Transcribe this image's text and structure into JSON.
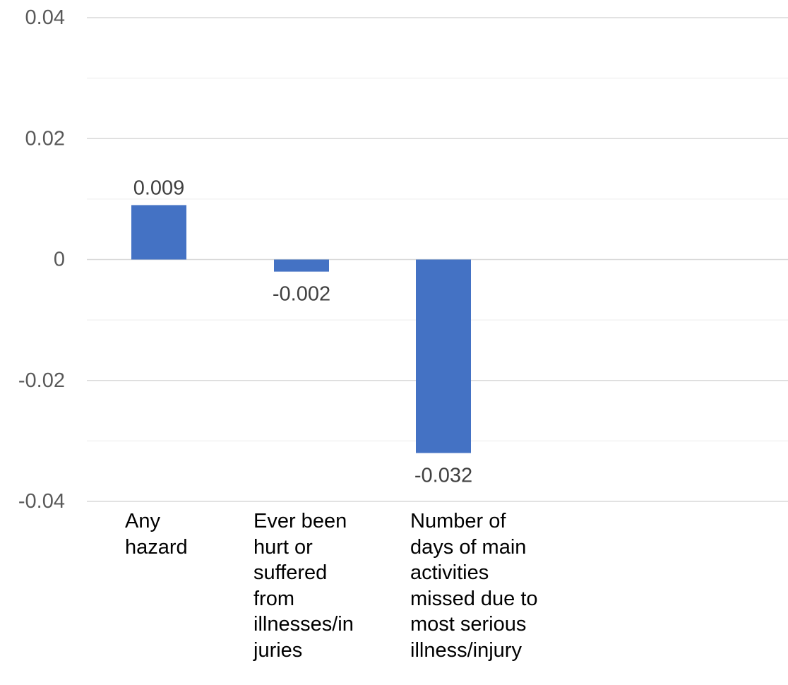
{
  "chart_data": {
    "type": "bar",
    "title": "",
    "xlabel": "",
    "ylabel": "",
    "categories": [
      "Any\nhazard",
      "Ever been\nhurt or\nsuffered\nfrom\nillnesses/in\njuries",
      "Number of\ndays of main\nactivities\nmissed due to\nmost serious\nillness/injury"
    ],
    "values": [
      0.009,
      -0.002,
      -0.032
    ],
    "data_labels": [
      "0.009",
      "-0.002",
      "-0.032"
    ],
    "ylim": [
      -0.04,
      0.04
    ],
    "yticks": [
      0.04,
      0.02,
      0,
      -0.02,
      -0.04
    ],
    "ytick_labels": [
      "0.04",
      "0.02",
      "0",
      "-0.02",
      "-0.04"
    ],
    "minor_gridlines": [
      0.03,
      0.01,
      -0.01,
      -0.03
    ],
    "grid": true,
    "legend": "none",
    "colors": {
      "bar": "#4472C4",
      "grid": "#D9D9D9",
      "tick_text": "#595959",
      "label_text": "#404040",
      "category_text": "#000000"
    }
  }
}
